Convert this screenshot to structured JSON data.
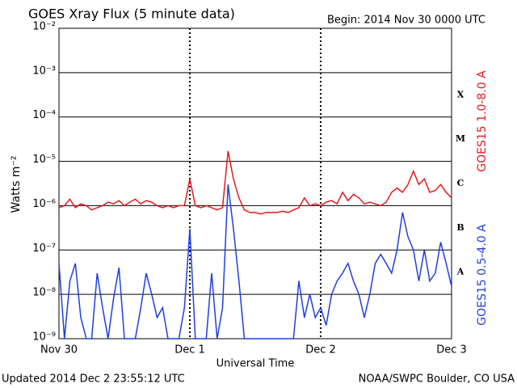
{
  "chart_data": {
    "type": "line",
    "title": "GOES Xray Flux (5 minute data)",
    "subtitle": "Begin:  2014 Nov 30 0000 UTC",
    "y_label": "Watts m⁻²",
    "x_label": "Universal Time",
    "footer_left": "Updated 2014 Dec  2 23:55:12 UTC",
    "footer_right": "NOAA/SWPC Boulder, CO USA",
    "log_y": true,
    "grid": true,
    "flare_classes": [
      "A",
      "B",
      "C",
      "M",
      "X"
    ],
    "xlim": [
      0,
      72
    ],
    "xticks": [
      {
        "value": 0,
        "label": "Nov 30"
      },
      {
        "value": 24,
        "label": "Dec 1"
      },
      {
        "value": 48,
        "label": "Dec 2"
      },
      {
        "value": 72,
        "label": "Dec 3"
      }
    ],
    "ylim": [
      1e-09,
      0.01
    ],
    "yticks": [
      {
        "value": 1e-09,
        "label": "10⁻⁹"
      },
      {
        "value": 1e-08,
        "label": "10⁻⁸"
      },
      {
        "value": 1e-07,
        "label": "10⁻⁷"
      },
      {
        "value": 1e-06,
        "label": "10⁻⁶"
      },
      {
        "value": 1e-05,
        "label": "10⁻⁵"
      },
      {
        "value": 0.0001,
        "label": "10⁻⁴"
      },
      {
        "value": 0.001,
        "label": "10⁻³"
      },
      {
        "value": 0.01,
        "label": "10⁻²"
      }
    ],
    "x": [
      0,
      1,
      2,
      3,
      4,
      5,
      6,
      7,
      8,
      9,
      10,
      11,
      12,
      13,
      14,
      15,
      16,
      17,
      18,
      19,
      20,
      21,
      22,
      23,
      24,
      25,
      26,
      27,
      28,
      29,
      30,
      31,
      32,
      33,
      34,
      35,
      36,
      37,
      38,
      39,
      40,
      41,
      42,
      43,
      44,
      45,
      46,
      47,
      48,
      49,
      50,
      51,
      52,
      53,
      54,
      55,
      56,
      57,
      58,
      59,
      60,
      61,
      62,
      63,
      64,
      65,
      66,
      67,
      68,
      69,
      70,
      71,
      72
    ],
    "series": [
      {
        "name": "GOES15 1.0-8.0 A",
        "color": "#e41a1c",
        "values": [
          9e-07,
          1e-06,
          1.4e-06,
          9e-07,
          1.1e-06,
          1e-06,
          8e-07,
          9e-07,
          1e-06,
          1.2e-06,
          1.1e-06,
          1.3e-06,
          1e-06,
          1.2e-06,
          1.4e-06,
          1.1e-06,
          1.3e-06,
          1.2e-06,
          1e-06,
          9e-07,
          1e-06,
          9e-07,
          1e-06,
          1e-06,
          4e-06,
          1e-06,
          9e-07,
          1e-06,
          9e-07,
          8e-07,
          9e-07,
          1.7e-05,
          4e-06,
          1.5e-06,
          8e-07,
          7e-07,
          7e-07,
          6.5e-07,
          7e-07,
          7e-07,
          7e-07,
          7.5e-07,
          7e-07,
          8e-07,
          9e-07,
          1.5e-06,
          1e-06,
          1.1e-06,
          1e-06,
          1.2e-06,
          1.3e-06,
          1.1e-06,
          2e-06,
          1.3e-06,
          1.8e-06,
          1.5e-06,
          1.1e-06,
          1.2e-06,
          1.1e-06,
          1e-06,
          1.2e-06,
          2e-06,
          2.5e-06,
          2e-06,
          3e-06,
          6e-06,
          3e-06,
          4e-06,
          2e-06,
          2.2e-06,
          3e-06,
          2e-06,
          1.5e-06
        ]
      },
      {
        "name": "GOES15 0.5-4.0 A",
        "color": "#1f3fe0",
        "values": [
          5e-08,
          1e-09,
          2e-08,
          5e-08,
          3e-09,
          1e-09,
          1e-09,
          3e-08,
          5e-09,
          1e-09,
          8e-09,
          4e-08,
          1e-09,
          1e-09,
          1e-09,
          5e-09,
          3e-08,
          1e-08,
          3e-09,
          5e-09,
          1e-09,
          1e-09,
          1e-09,
          5e-09,
          3e-07,
          1e-09,
          1e-09,
          1e-09,
          3e-08,
          1e-09,
          5e-09,
          3e-06,
          3e-07,
          2e-08,
          1e-09,
          1e-09,
          1e-09,
          1e-09,
          1e-09,
          1e-09,
          1e-09,
          1e-09,
          1e-09,
          1e-09,
          2e-08,
          3e-09,
          1e-08,
          3e-09,
          5e-09,
          2e-09,
          1e-08,
          2e-08,
          3e-08,
          5e-08,
          2e-08,
          1e-08,
          3e-09,
          1e-08,
          5e-08,
          8e-08,
          5e-08,
          3e-08,
          1e-07,
          7e-07,
          2e-07,
          1e-07,
          2e-08,
          1e-07,
          2e-08,
          3e-08,
          1.5e-07,
          5e-08,
          1.5e-08
        ]
      }
    ]
  }
}
